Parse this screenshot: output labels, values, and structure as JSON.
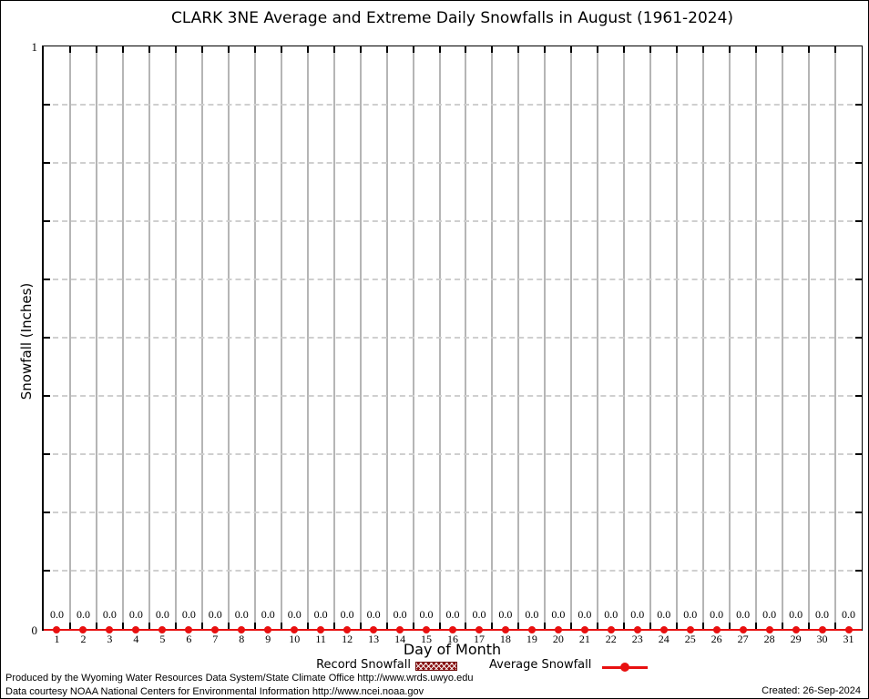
{
  "chart_data": {
    "type": "line",
    "title": "CLARK 3NE Average and Extreme Daily Snowfalls in August (1961-2024)",
    "xlabel": "Day of Month",
    "ylabel": "Snowfall (Inches)",
    "ylim": [
      0,
      1
    ],
    "ytick_labels": [
      "1",
      "0"
    ],
    "x": [
      1,
      2,
      3,
      4,
      5,
      6,
      7,
      8,
      9,
      10,
      11,
      12,
      13,
      14,
      15,
      16,
      17,
      18,
      19,
      20,
      21,
      22,
      23,
      24,
      25,
      26,
      27,
      28,
      29,
      30,
      31
    ],
    "series": [
      {
        "name": "Record Snowfall",
        "type": "box",
        "color": "#8b1111",
        "values": [
          0,
          0,
          0,
          0,
          0,
          0,
          0,
          0,
          0,
          0,
          0,
          0,
          0,
          0,
          0,
          0,
          0,
          0,
          0,
          0,
          0,
          0,
          0,
          0,
          0,
          0,
          0,
          0,
          0,
          0,
          0
        ]
      },
      {
        "name": "Average Snowfall",
        "type": "line-point",
        "color": "#e81010",
        "values": [
          0,
          0,
          0,
          0,
          0,
          0,
          0,
          0,
          0,
          0,
          0,
          0,
          0,
          0,
          0,
          0,
          0,
          0,
          0,
          0,
          0,
          0,
          0,
          0,
          0,
          0,
          0,
          0,
          0,
          0,
          0
        ]
      }
    ],
    "value_label_decimals": 1,
    "grid": {
      "vertical": "solid",
      "horizontal": "dashed",
      "x_interval": 1,
      "y_interval": 0.1
    },
    "legend_position": "bottom-center"
  },
  "legend": {
    "entries": [
      {
        "label": "Record Snowfall",
        "swatch": "hatched-box",
        "color": "#8b1111"
      },
      {
        "label": "Average Snowfall",
        "swatch": "line-point",
        "color": "#e81010"
      }
    ]
  },
  "footer": {
    "line1": "Produced by the Wyoming Water Resources Data System/State Climate Office http://www.wrds.uwyo.edu",
    "line2": "Data courtesy NOAA National Centers for Environmental Information http://www.ncei.noaa.gov",
    "created": "Created: 26-Sep-2024"
  }
}
